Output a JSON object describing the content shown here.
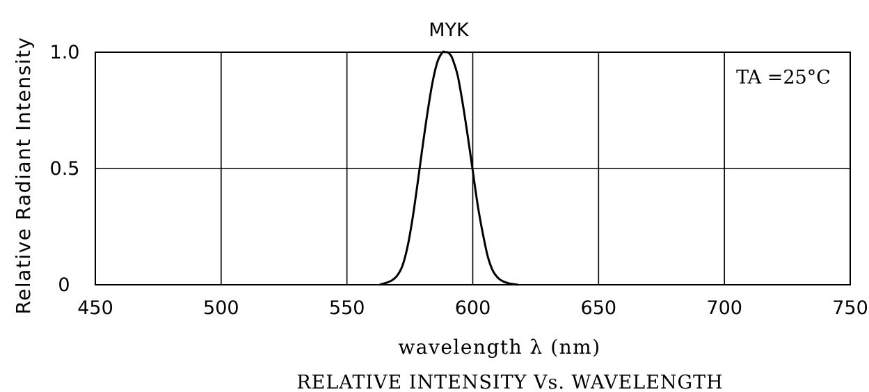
{
  "chart_data": {
    "type": "line",
    "title": "MYK",
    "caption": "RELATIVE INTENSITY Vs. WAVELENGTH",
    "xlabel": "wavelength λ  (nm)",
    "ylabel": "Relative Radiant Intensity",
    "annotation": "TA =25°C",
    "xlim": [
      450,
      750
    ],
    "ylim": [
      0,
      1.0
    ],
    "x_ticks": [
      450,
      500,
      550,
      600,
      650,
      700,
      750
    ],
    "x_tick_labels": [
      "450",
      "500",
      "550",
      "600",
      "650",
      "700",
      "750"
    ],
    "y_ticks": [
      0,
      0.5,
      1.0
    ],
    "y_tick_labels": [
      "0",
      "0.5",
      "1.0"
    ],
    "grid": true,
    "series": [
      {
        "label": "MYK",
        "x": [
          563,
          566,
          568,
          570,
          572,
          574,
          576,
          578,
          580,
          582,
          584,
          586,
          588,
          589,
          590,
          591,
          592,
          594,
          596,
          598,
          600,
          602,
          604,
          606,
          608,
          610,
          612,
          614,
          616,
          618
        ],
        "y": [
          0.0,
          0.01,
          0.02,
          0.04,
          0.08,
          0.16,
          0.28,
          0.43,
          0.59,
          0.74,
          0.87,
          0.96,
          1.0,
          1.0,
          1.0,
          0.99,
          0.97,
          0.9,
          0.78,
          0.64,
          0.49,
          0.34,
          0.22,
          0.12,
          0.06,
          0.03,
          0.015,
          0.007,
          0.003,
          0.0
        ]
      }
    ]
  }
}
